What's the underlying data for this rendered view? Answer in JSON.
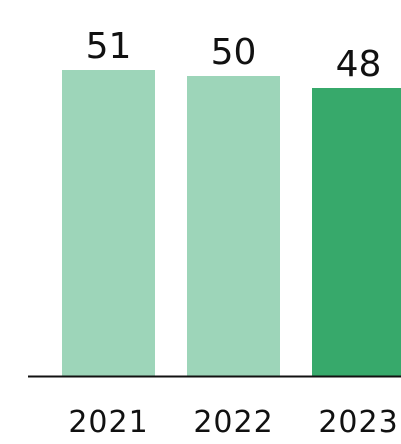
{
  "chart_data": {
    "type": "bar",
    "categories": [
      "2021",
      "2022",
      "2023"
    ],
    "values": [
      51,
      50,
      48
    ],
    "colors": [
      "#9dd5b9",
      "#9dd5b9",
      "#37a96b"
    ]
  }
}
